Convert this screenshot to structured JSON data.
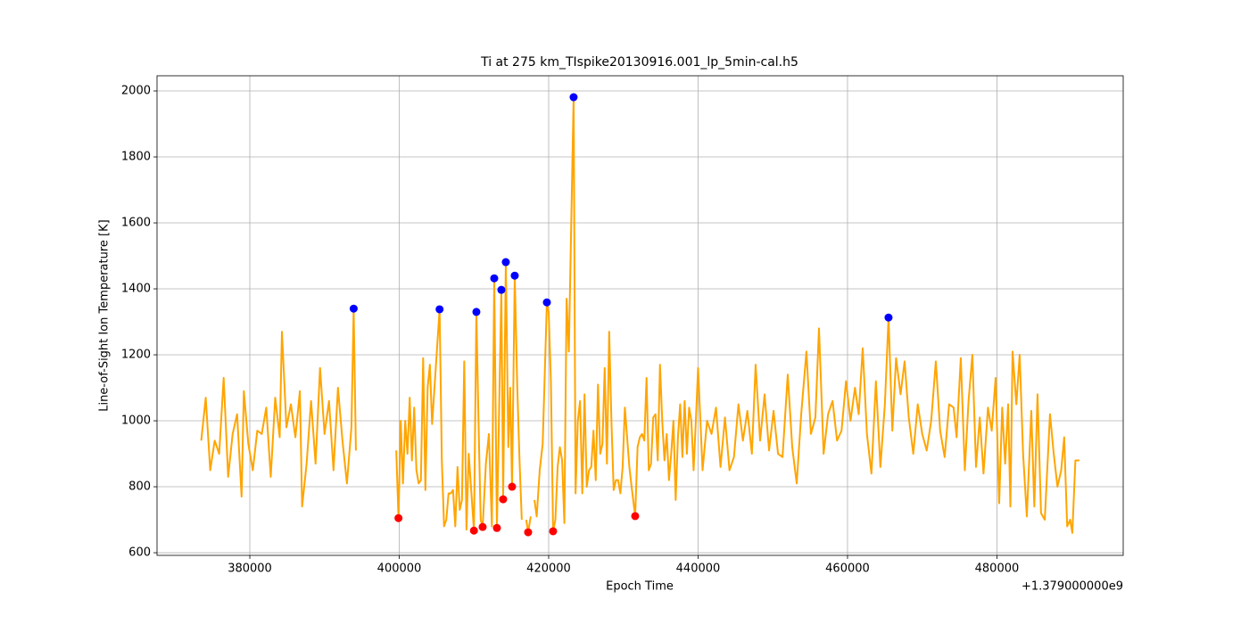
{
  "chart_data": {
    "type": "line",
    "title": "Ti at 275 km_TIspike20130916.001_lp_5min-cal.h5",
    "xlabel": "Epoch Time",
    "ylabel": "Line-of-Sight Ion Temperature [K]",
    "x_offset_label": "+1.379000000e9",
    "xlim": [
      367580,
      496900
    ],
    "ylim": [
      592,
      2046
    ],
    "xticks": [
      380000,
      400000,
      420000,
      440000,
      460000,
      480000
    ],
    "yticks": [
      600,
      800,
      1000,
      1200,
      1400,
      1600,
      1800,
      2000
    ],
    "grid": true,
    "x": [
      373500,
      374100,
      374700,
      375300,
      375900,
      376500,
      377100,
      377700,
      378300,
      378900,
      379200,
      379800,
      380400,
      381000,
      381600,
      382200,
      382800,
      383400,
      384000,
      384300,
      384900,
      385500,
      386100,
      386700,
      387000,
      387600,
      388200,
      388800,
      389400,
      390000,
      390600,
      391200,
      391800,
      392400,
      393000,
      393600,
      393900,
      394200,
      396900,
      399600,
      399900,
      400200,
      400500,
      400800,
      401100,
      401400,
      401700,
      402000,
      402300,
      402600,
      402900,
      403200,
      403500,
      403800,
      404100,
      404400,
      405400,
      405700,
      406000,
      406300,
      406600,
      406900,
      407200,
      407500,
      407800,
      408100,
      408400,
      408700,
      409000,
      409300,
      410000,
      410325,
      410600,
      410900,
      411163,
      411600,
      412000,
      412400,
      412715,
      413072,
      413669,
      413907,
      414265,
      414600,
      414850,
      415100,
      415460,
      415800,
      416100,
      416400,
      416700,
      417000,
      417252,
      417600,
      417900,
      418100,
      418400,
      418800,
      419200,
      419760,
      420000,
      420300,
      420595,
      420900,
      421200,
      421500,
      421800,
      422100,
      422400,
      422700,
      423340,
      423600,
      423900,
      424200,
      424500,
      424800,
      425100,
      425400,
      425700,
      426000,
      426300,
      426600,
      426900,
      427200,
      427500,
      427800,
      428100,
      428400,
      428700,
      429000,
      429300,
      429600,
      429900,
      430200,
      430500,
      430800,
      431100,
      431580,
      431900,
      432200,
      432500,
      432800,
      433100,
      433400,
      433700,
      434000,
      434300,
      434600,
      434900,
      435200,
      435500,
      435800,
      436100,
      436400,
      436700,
      437000,
      437300,
      437600,
      437900,
      438200,
      438500,
      438800,
      439100,
      439400,
      439700,
      440000,
      440600,
      441200,
      441800,
      442400,
      443000,
      443600,
      444200,
      444800,
      445400,
      446000,
      446600,
      447200,
      447700,
      448300,
      448900,
      449500,
      450100,
      450700,
      451300,
      452000,
      452600,
      453200,
      453800,
      454500,
      455100,
      455700,
      456180,
      456800,
      457400,
      458000,
      458600,
      459200,
      459800,
      460400,
      461000,
      461500,
      462030,
      462600,
      463200,
      463800,
      464400,
      465000,
      465490,
      466000,
      466500,
      467100,
      467640,
      468200,
      468800,
      469400,
      470000,
      470600,
      471200,
      471820,
      472400,
      473000,
      473600,
      474200,
      474600,
      475160,
      475700,
      476200,
      476710,
      477200,
      477700,
      478200,
      478800,
      479300,
      479820,
      480300,
      480700,
      481100,
      481500,
      481800,
      482090,
      482600,
      483040,
      483500,
      484000,
      484600,
      485000,
      485430,
      485900,
      486400,
      487100,
      487600,
      488100,
      488600,
      489000,
      489400,
      489800,
      490090,
      490500,
      491040
    ],
    "series": [
      {
        "color": "#ffa500",
        "values": [
          940,
          1070,
          850,
          940,
          900,
          1130,
          830,
          960,
          1020,
          770,
          1090,
          930,
          850,
          970,
          960,
          1040,
          830,
          1070,
          950,
          1270,
          980,
          1050,
          950,
          1090,
          740,
          870,
          1060,
          870,
          1160,
          960,
          1060,
          850,
          1100,
          940,
          810,
          980,
          1340,
          910,
          null,
          910,
          705,
          1000,
          810,
          1000,
          900,
          1070,
          880,
          1040,
          850,
          810,
          820,
          1190,
          790,
          1100,
          1170,
          990,
          1338,
          880,
          680,
          700,
          780,
          780,
          790,
          680,
          860,
          730,
          760,
          1180,
          670,
          900,
          667,
          1330,
          1010,
          700,
          678,
          870,
          960,
          680,
          1432,
          675,
          1397,
          762,
          1481,
          920,
          1100,
          800,
          1440,
          1100,
          880,
          700,
          null,
          700,
          662,
          710,
          null,
          760,
          710,
          850,
          930,
          1359,
          1330,
          1120,
          665,
          700,
          860,
          920,
          880,
          690,
          1370,
          1210,
          1981,
          780,
          1000,
          1060,
          780,
          1080,
          800,
          850,
          860,
          970,
          820,
          1110,
          900,
          930,
          1160,
          870,
          1270,
          1000,
          790,
          820,
          820,
          780,
          860,
          1040,
          950,
          860,
          800,
          711,
          920,
          950,
          960,
          940,
          1130,
          850,
          870,
          1010,
          1020,
          880,
          1170,
          1000,
          880,
          960,
          820,
          900,
          1000,
          760,
          950,
          1050,
          890,
          1060,
          900,
          1040,
          1000,
          850,
          1000,
          1160,
          850,
          1000,
          960,
          1040,
          860,
          1010,
          850,
          890,
          1050,
          940,
          1030,
          900,
          1170,
          940,
          1080,
          910,
          1030,
          900,
          890,
          1140,
          920,
          810,
          1020,
          1210,
          960,
          1010,
          1280,
          900,
          1020,
          1060,
          940,
          970,
          1120,
          1000,
          1100,
          1020,
          1220,
          960,
          840,
          1120,
          860,
          1050,
          1313,
          970,
          1190,
          1080,
          1180,
          1010,
          900,
          1050,
          960,
          910,
          1000,
          1180,
          970,
          890,
          1050,
          1040,
          950,
          1190,
          850,
          1060,
          1200,
          860,
          1010,
          840,
          1040,
          970,
          1130,
          750,
          1040,
          870,
          1050,
          740,
          1210,
          1050,
          1200,
          900,
          710,
          1030,
          740,
          1080,
          720,
          700,
          1020,
          900,
          800,
          850,
          950,
          680,
          700,
          660,
          880,
          880
        ]
      }
    ],
    "markers": [
      {
        "type": "scatter",
        "color": "#0000ff",
        "x": [
          393900,
          405400,
          410325,
          412715,
          413669,
          414265,
          415460,
          419760,
          423340,
          465490
        ],
        "values": [
          1340,
          1338,
          1330,
          1432,
          1397,
          1481,
          1440,
          1359,
          1981,
          1313
        ]
      },
      {
        "type": "scatter",
        "color": "#ff0000",
        "x": [
          399900,
          410000,
          411163,
          413072,
          413907,
          415100,
          417252,
          420595,
          431580
        ],
        "values": [
          705,
          667,
          678,
          675,
          762,
          800,
          662,
          665,
          711
        ]
      }
    ]
  }
}
